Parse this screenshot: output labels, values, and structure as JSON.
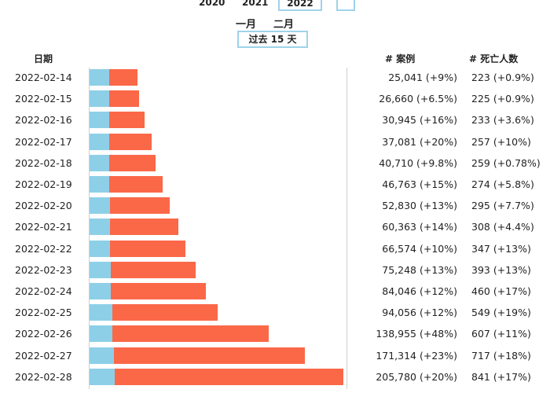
{
  "years": [
    "2020",
    "2021",
    "2022"
  ],
  "months": [
    "一月",
    "二月"
  ],
  "range_label": "过去 15 天",
  "headers": {
    "date": "日期",
    "cases": "# 案例",
    "deaths": "# 死亡人数"
  },
  "colors": {
    "deaths_bar": "#8ecfe8",
    "cases_bar": "#fb6848",
    "accent_border": "#9fd3ea"
  },
  "rows": [
    {
      "date": "2022-02-14",
      "cases": "25,041 (+9%)",
      "deaths": "223 (+0.9%)",
      "case_count": 25041,
      "death_count": 223
    },
    {
      "date": "2022-02-15",
      "cases": "26,660 (+6.5%)",
      "deaths": "225 (+0.9%)",
      "case_count": 26660,
      "death_count": 225
    },
    {
      "date": "2022-02-16",
      "cases": "30,945 (+16%)",
      "deaths": "233 (+3.6%)",
      "case_count": 30945,
      "death_count": 233
    },
    {
      "date": "2022-02-17",
      "cases": "37,081 (+20%)",
      "deaths": "257 (+10%)",
      "case_count": 37081,
      "death_count": 257
    },
    {
      "date": "2022-02-18",
      "cases": "40,710 (+9.8%)",
      "deaths": "259 (+0.78%)",
      "case_count": 40710,
      "death_count": 259
    },
    {
      "date": "2022-02-19",
      "cases": "46,763 (+15%)",
      "deaths": "274 (+5.8%)",
      "case_count": 46763,
      "death_count": 274
    },
    {
      "date": "2022-02-20",
      "cases": "52,830 (+13%)",
      "deaths": "295 (+7.7%)",
      "case_count": 52830,
      "death_count": 295
    },
    {
      "date": "2022-02-21",
      "cases": "60,363 (+14%)",
      "deaths": "308 (+4.4%)",
      "case_count": 60363,
      "death_count": 308
    },
    {
      "date": "2022-02-22",
      "cases": "66,574 (+10%)",
      "deaths": "347 (+13%)",
      "case_count": 66574,
      "death_count": 347
    },
    {
      "date": "2022-02-23",
      "cases": "75,248 (+13%)",
      "deaths": "393 (+13%)",
      "case_count": 75248,
      "death_count": 393
    },
    {
      "date": "2022-02-24",
      "cases": "84,046 (+12%)",
      "deaths": "460 (+17%)",
      "case_count": 84046,
      "death_count": 460
    },
    {
      "date": "2022-02-25",
      "cases": "94,056 (+12%)",
      "deaths": "549 (+19%)",
      "case_count": 94056,
      "death_count": 549
    },
    {
      "date": "2022-02-26",
      "cases": "138,955 (+48%)",
      "deaths": "607 (+11%)",
      "case_count": 138955,
      "death_count": 607
    },
    {
      "date": "2022-02-27",
      "cases": "171,314 (+23%)",
      "deaths": "717 (+18%)",
      "case_count": 171314,
      "death_count": 717
    },
    {
      "date": "2022-02-28",
      "cases": "205,780 (+20%)",
      "deaths": "841 (+17%)",
      "case_count": 205780,
      "death_count": 841
    }
  ]
}
